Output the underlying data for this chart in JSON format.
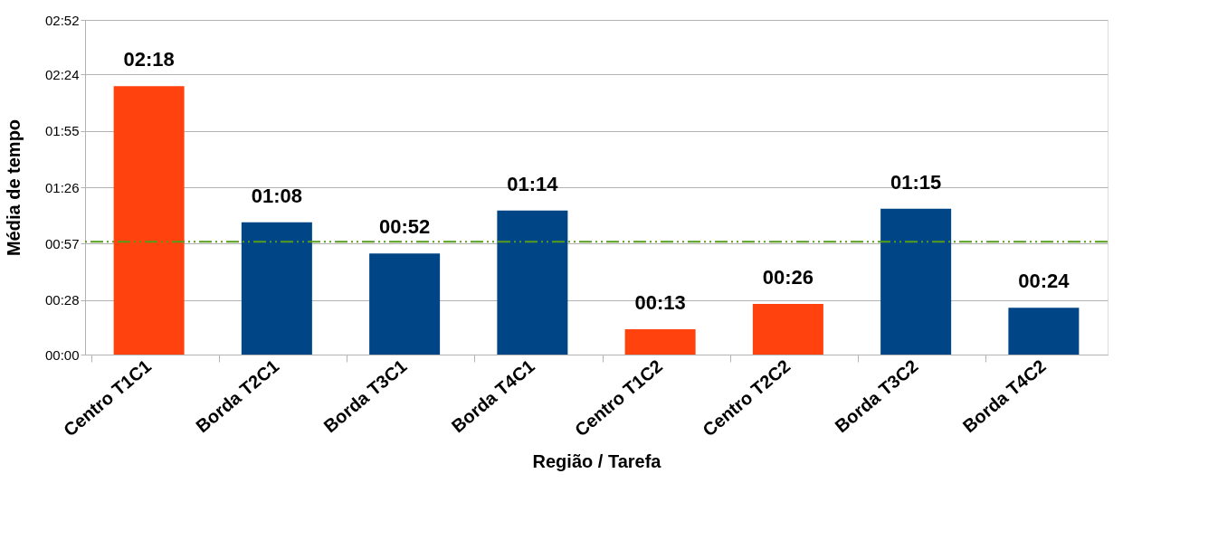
{
  "chart_data": {
    "type": "bar",
    "xlabel": "Região / Tarefa",
    "ylabel": "Média de tempo",
    "categories": [
      "Centro T1C1",
      "Borda T2C1",
      "Borda T3C1",
      "Borda T4C1",
      "Centro T1C2",
      "Centro T2C2",
      "Borda T3C2",
      "Borda T4C2"
    ],
    "values": [
      138,
      68,
      52,
      74,
      13,
      26,
      75,
      24
    ],
    "colors": [
      "#ff420e",
      "#004586",
      "#004586",
      "#004586",
      "#ff420e",
      "#ff420e",
      "#004586",
      "#004586"
    ],
    "value_labels": [
      "02:18",
      "01:08",
      "00:52",
      "01:14",
      "00:13",
      "00:26",
      "01:15",
      "00:24"
    ],
    "ylim": [
      0,
      172
    ],
    "yticks": [
      {
        "value": 0,
        "label": "00:00"
      },
      {
        "value": 28,
        "label": "00:28"
      },
      {
        "value": 57,
        "label": "00:57"
      },
      {
        "value": 86,
        "label": "01:26"
      },
      {
        "value": 115,
        "label": "01:55"
      },
      {
        "value": 144,
        "label": "02:24"
      },
      {
        "value": 172,
        "label": "02:52"
      }
    ],
    "ref_lines": [
      {
        "axis": "y",
        "value": 58,
        "color": "#579d1c",
        "line_style": "dashed"
      }
    ],
    "grid": "y"
  }
}
